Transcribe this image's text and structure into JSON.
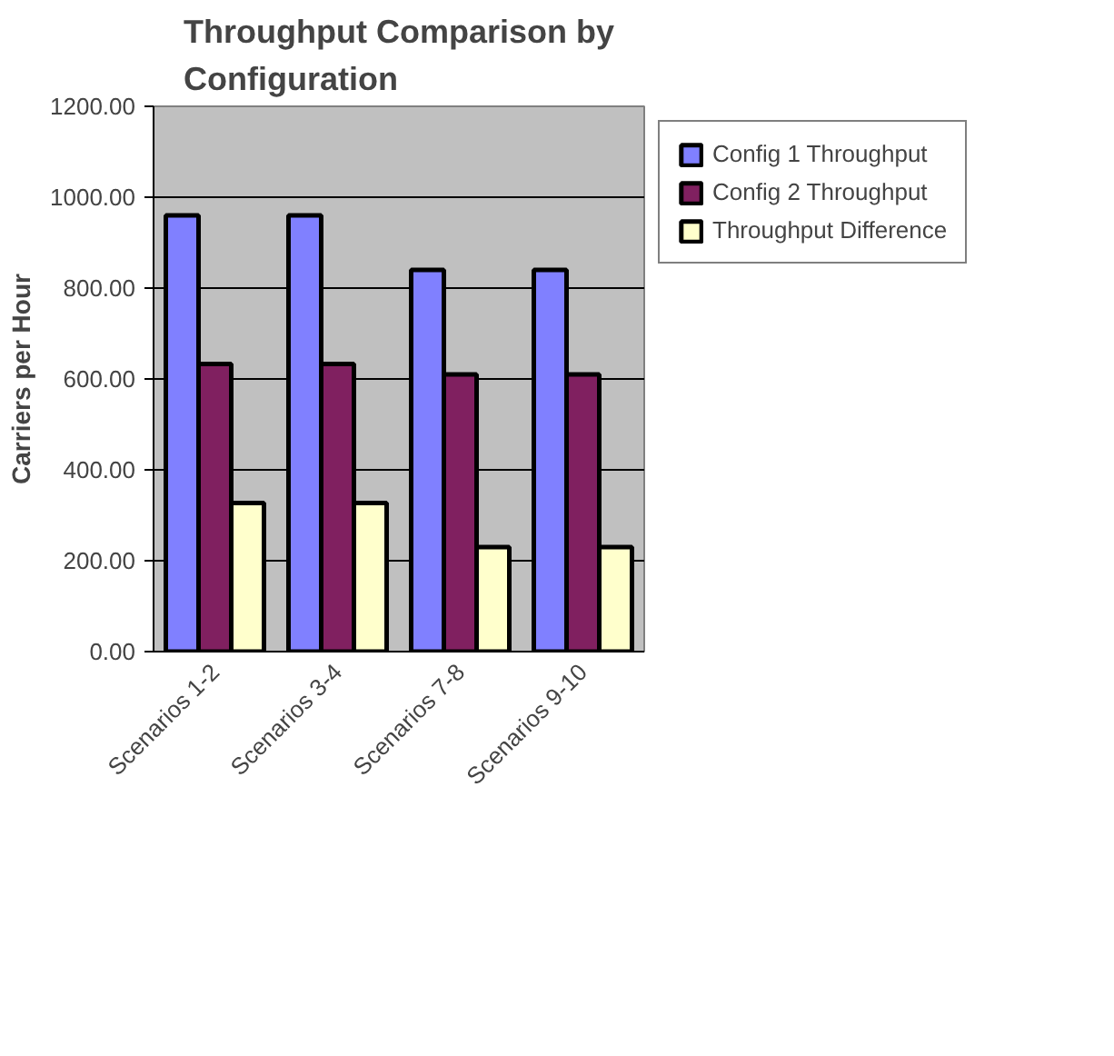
{
  "chart_data": {
    "type": "bar",
    "title": "Throughput Comparison by Configuration",
    "ylabel": "Carriers per Hour",
    "categories": [
      "Scenarios 1-2",
      "Scenarios 3-4",
      "Scenarios 7-8",
      "Scenarios 9-10"
    ],
    "series": [
      {
        "name": "Config 1 Throughput",
        "color": "#8080ff",
        "values": [
          960,
          960,
          840,
          840
        ]
      },
      {
        "name": "Config 2 Throughput",
        "color": "#802060",
        "values": [
          633,
          633,
          610,
          610
        ]
      },
      {
        "name": "Throughput Difference",
        "color": "#ffffcc",
        "values": [
          327,
          327,
          230,
          230
        ]
      }
    ],
    "ylim": [
      0,
      1200
    ],
    "yticks": [
      {
        "value": 0,
        "label": "0.00"
      },
      {
        "value": 200,
        "label": "200.00"
      },
      {
        "value": 400,
        "label": "400.00"
      },
      {
        "value": 600,
        "label": "600.00"
      },
      {
        "value": 800,
        "label": "800.00"
      },
      {
        "value": 1000,
        "label": "1000.00"
      },
      {
        "value": 1200,
        "label": "1200.00"
      }
    ],
    "grid": "y",
    "legend": "right"
  }
}
